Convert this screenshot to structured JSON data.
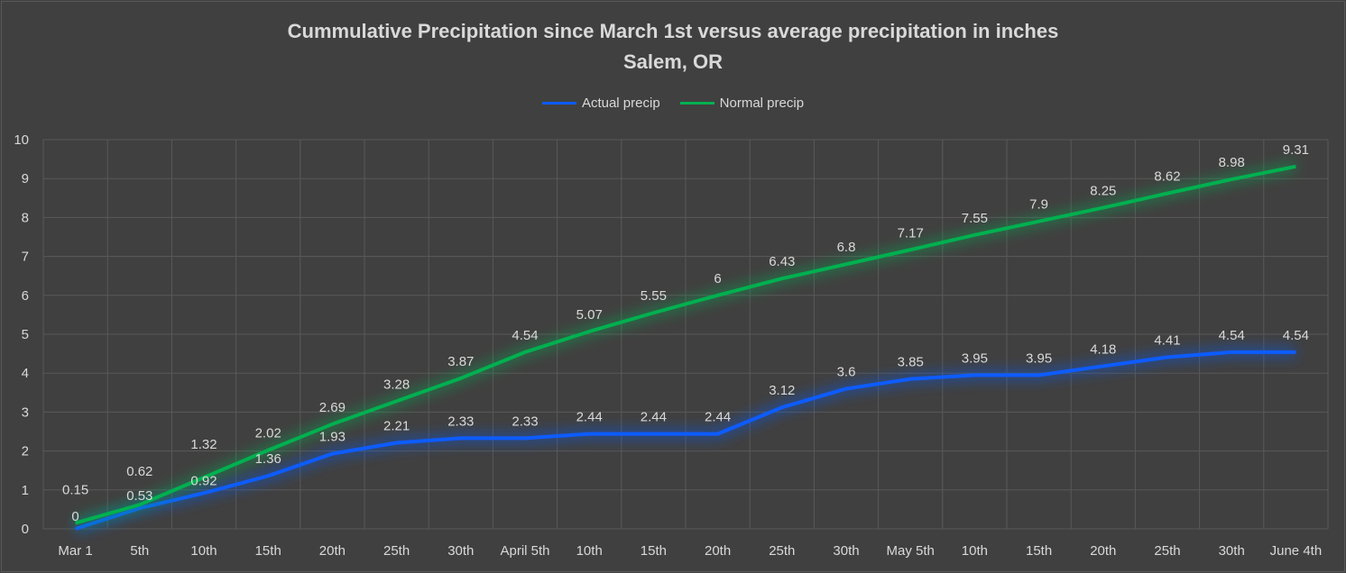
{
  "chart_data": {
    "type": "line",
    "title": "Cummulative Precipitation since March 1st versus average precipitation in inches",
    "subtitle": "Salem, OR",
    "xlabel": "",
    "ylabel": "",
    "ylim": [
      0,
      10
    ],
    "yticks": [
      0,
      1,
      2,
      3,
      4,
      5,
      6,
      7,
      8,
      9,
      10
    ],
    "grid": true,
    "legend_position": "top",
    "categories": [
      "Mar 1",
      "5th",
      "10th",
      "15th",
      "20th",
      "25th",
      "30th",
      "April 5th",
      "10th",
      "15th",
      "20th",
      "25th",
      "30th",
      "May 5th",
      "10th",
      "15th",
      "20th",
      "25th",
      "30th",
      "June 4th"
    ],
    "series": [
      {
        "name": "Actual precip",
        "color": "#0d5cff",
        "values": [
          0,
          0.53,
          0.92,
          1.36,
          1.93,
          2.21,
          2.33,
          2.33,
          2.44,
          2.44,
          2.44,
          3.12,
          3.6,
          3.85,
          3.95,
          3.95,
          4.18,
          4.41,
          4.54,
          4.54
        ]
      },
      {
        "name": "Normal precip",
        "color": "#00b050",
        "values": [
          0.15,
          0.62,
          1.32,
          2.02,
          2.69,
          3.28,
          3.87,
          4.54,
          5.07,
          5.55,
          6,
          6.43,
          6.8,
          7.17,
          7.55,
          7.9,
          8.25,
          8.62,
          8.98,
          9.31
        ]
      }
    ]
  },
  "colors": {
    "background": "#404040",
    "grid": "#595959",
    "text": "#d9d9d9"
  }
}
